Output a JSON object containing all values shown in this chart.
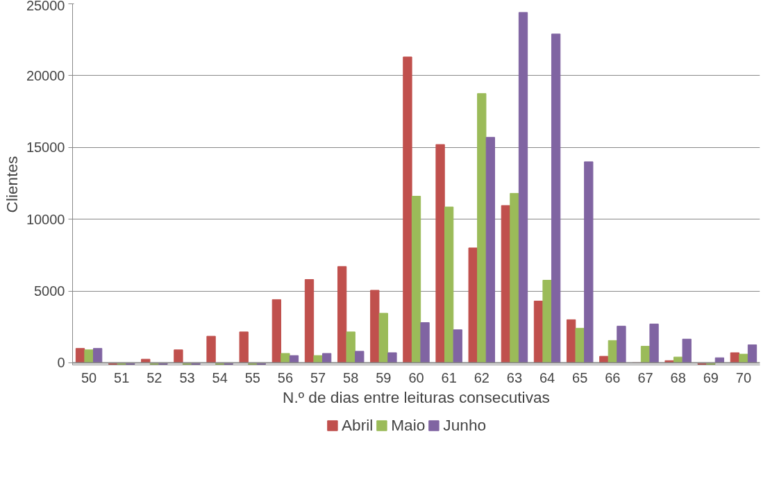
{
  "chart_data": {
    "type": "bar",
    "xlabel": "N.º de dias entre leituras consecutivas",
    "ylabel": "Clientes",
    "categories": [
      "50",
      "51",
      "52",
      "53",
      "54",
      "55",
      "56",
      "57",
      "58",
      "59",
      "60",
      "61",
      "62",
      "63",
      "64",
      "65",
      "66",
      "67",
      "68",
      "69",
      "70"
    ],
    "series": [
      {
        "name": "Abril",
        "color": "#c0504d",
        "values": [
          1000,
          -100,
          250,
          900,
          1850,
          2150,
          4400,
          5800,
          6700,
          5050,
          21300,
          15200,
          8000,
          10950,
          4300,
          3000,
          450,
          0,
          150,
          -100,
          700
        ]
      },
      {
        "name": "Maio",
        "color": "#9bbb59",
        "values": [
          900,
          -100,
          -100,
          -100,
          -100,
          -100,
          650,
          500,
          2150,
          3450,
          11600,
          10850,
          18750,
          11800,
          5750,
          2400,
          1550,
          1150,
          400,
          -100,
          600
        ]
      },
      {
        "name": "Junho",
        "color": "#8064a2",
        "values": [
          1000,
          -100,
          -100,
          -100,
          -100,
          -100,
          500,
          650,
          800,
          700,
          2800,
          2300,
          15700,
          24400,
          22900,
          14000,
          2550,
          2700,
          1650,
          350,
          1250
        ]
      }
    ],
    "ylim": [
      -150,
      25000
    ],
    "yticks": [
      0,
      5000,
      10000,
      15000,
      20000,
      25000
    ],
    "grid": "y",
    "legend": "bottom"
  }
}
